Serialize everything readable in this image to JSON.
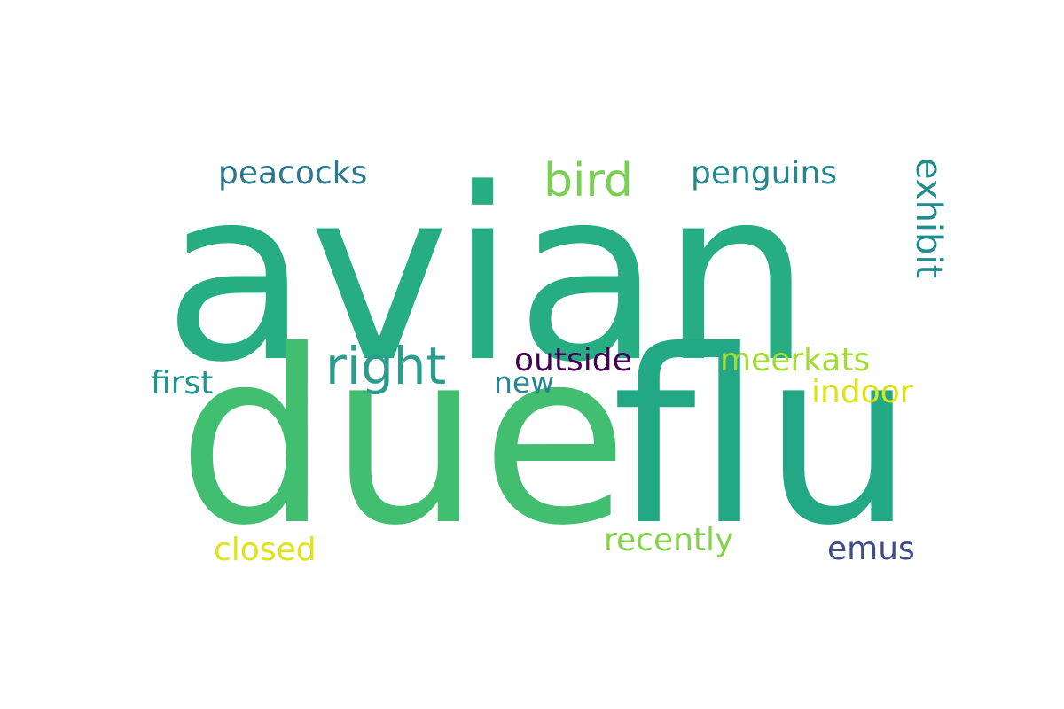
{
  "word_cloud": {
    "words": {
      "avian": {
        "text": "avian",
        "color": "#26ad81"
      },
      "due": {
        "text": "due",
        "color": "#42be71"
      },
      "flu": {
        "text": "flu",
        "color": "#22a884"
      },
      "right": {
        "text": "right",
        "color": "#2a9d8c"
      },
      "bird": {
        "text": "bird",
        "color": "#7ad151"
      },
      "peacocks": {
        "text": "peacocks",
        "color": "#2a788e"
      },
      "penguins": {
        "text": "penguins",
        "color": "#23888e"
      },
      "exhibit": {
        "text": "exhibit",
        "color": "#228b8d"
      },
      "outside": {
        "text": "outside",
        "color": "#440154"
      },
      "meerkats": {
        "text": "meerkats",
        "color": "#a5db36"
      },
      "first": {
        "text": "first",
        "color": "#1f968b"
      },
      "new": {
        "text": "new",
        "color": "#25858e"
      },
      "indoor": {
        "text": "indoor",
        "color": "#dde318"
      },
      "closed": {
        "text": "closed",
        "color": "#dfe318"
      },
      "recently": {
        "text": "recently",
        "color": "#84d44b"
      },
      "emus": {
        "text": "emus",
        "color": "#3e4c8a"
      }
    }
  }
}
